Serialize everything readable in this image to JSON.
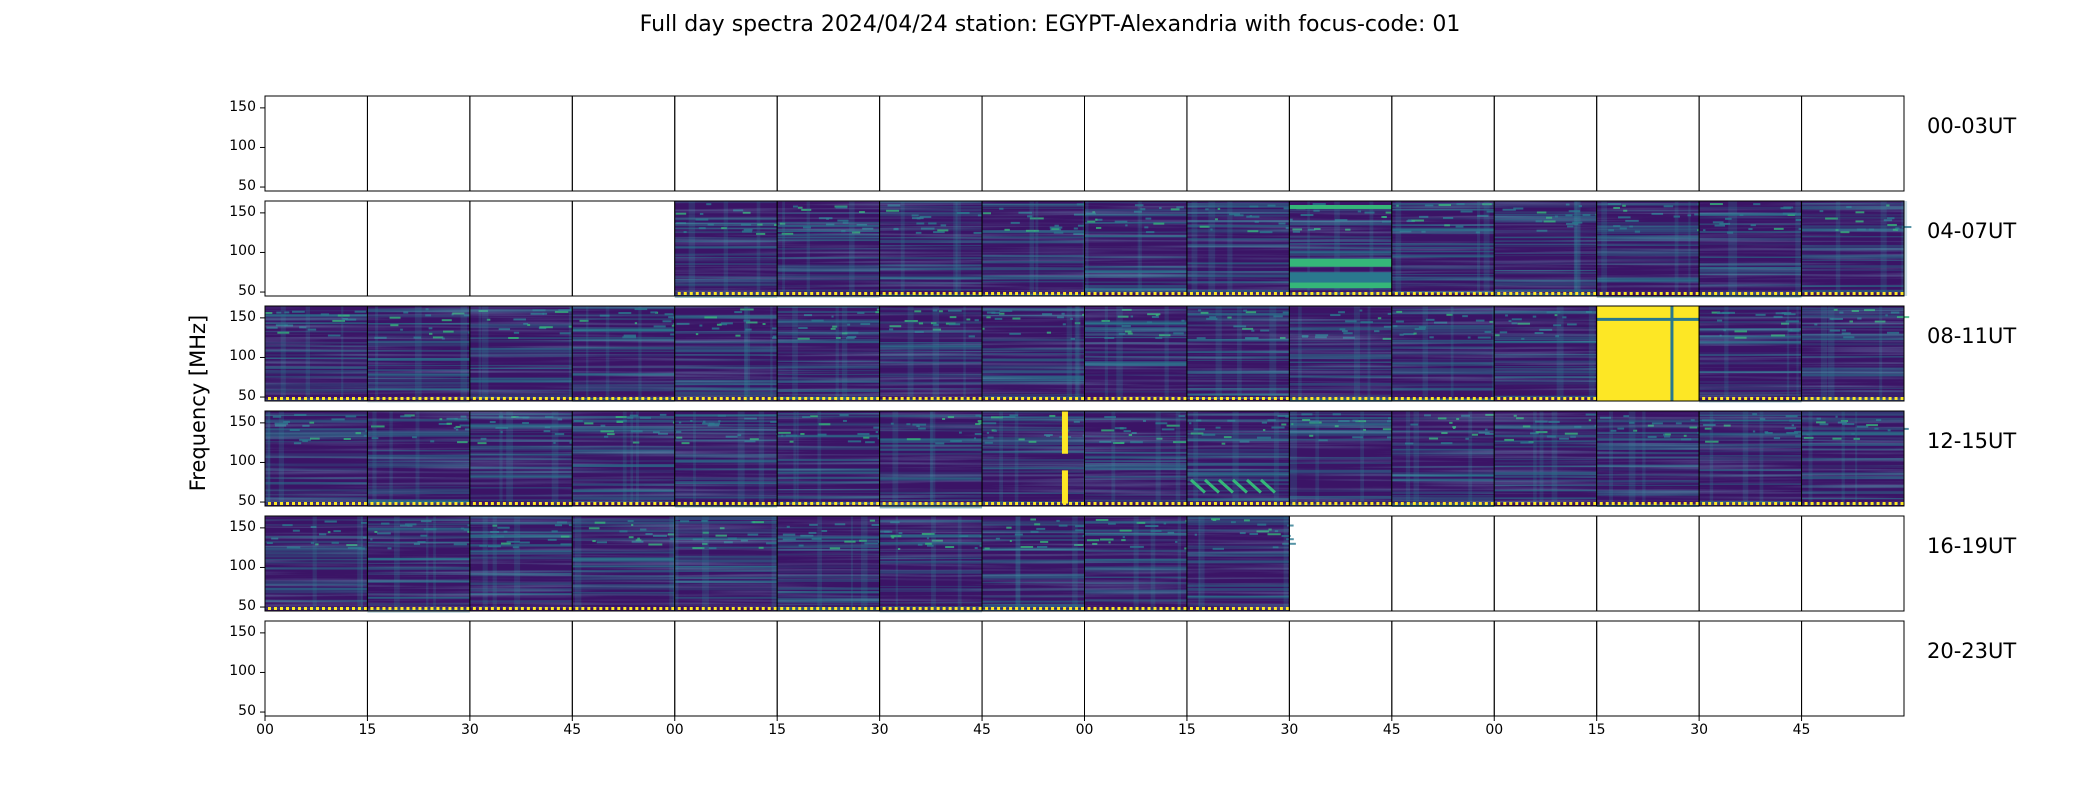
{
  "chart_data": {
    "type": "heatmap",
    "title": "Full day spectra 2024/04/24 station: EGYPT-Alexandria with focus-code: 01",
    "ylabel": "Frequency [MHz]",
    "xlabel": "",
    "y_ticks": [
      "50",
      "100",
      "150"
    ],
    "x_ticks": [
      "00",
      "15",
      "30",
      "45",
      "00",
      "15",
      "30",
      "45",
      "00",
      "15",
      "30",
      "45",
      "00",
      "15",
      "30",
      "45"
    ],
    "ylim": [
      45,
      165
    ],
    "colormap": "viridis",
    "panels_per_row": 16,
    "minutes_per_panel": 15,
    "rows": [
      {
        "label": "00-03UT",
        "panels": [
          "empty",
          "empty",
          "empty",
          "empty",
          "empty",
          "empty",
          "empty",
          "empty",
          "empty",
          "empty",
          "empty",
          "empty",
          "empty",
          "empty",
          "empty",
          "empty"
        ]
      },
      {
        "label": "04-07UT",
        "panels": [
          "empty",
          "empty",
          "empty",
          "empty",
          "data",
          "data",
          "data",
          "data",
          "data",
          "data",
          "burst",
          "data",
          "data",
          "data",
          "data",
          "data"
        ]
      },
      {
        "label": "08-11UT",
        "panels": [
          "data",
          "data",
          "data",
          "data",
          "data",
          "data",
          "data",
          "data",
          "data",
          "data",
          "data",
          "data",
          "data",
          "saturated",
          "data",
          "data"
        ]
      },
      {
        "label": "12-15UT",
        "panels": [
          "data",
          "data",
          "data",
          "data",
          "data",
          "data",
          "data",
          "spike",
          "data",
          "drift",
          "data",
          "data",
          "data",
          "data",
          "data",
          "data"
        ]
      },
      {
        "label": "16-19UT",
        "panels": [
          "data",
          "data",
          "data",
          "data",
          "data",
          "data",
          "data",
          "data",
          "data",
          "data",
          "empty",
          "empty",
          "empty",
          "empty",
          "empty",
          "empty"
        ]
      },
      {
        "label": "20-23UT",
        "panels": [
          "empty",
          "empty",
          "empty",
          "empty",
          "empty",
          "empty",
          "empty",
          "empty",
          "empty",
          "empty",
          "empty",
          "empty",
          "empty",
          "empty",
          "empty",
          "empty"
        ]
      }
    ]
  },
  "colors": {
    "low": "#3b1466",
    "mid": "#2a788e",
    "high": "#35b779",
    "max": "#fde725",
    "axis": "#000000"
  }
}
